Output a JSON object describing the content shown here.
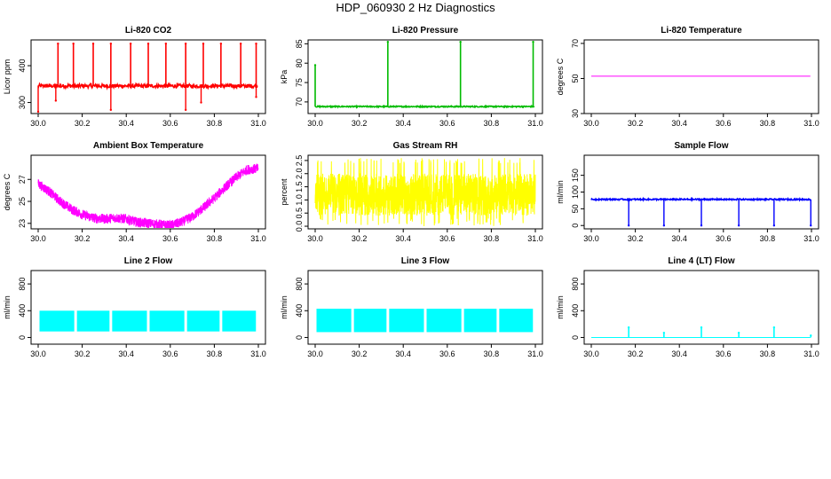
{
  "title": "HDP_060930  2 Hz Diagnostics",
  "chart_data": [
    {
      "type": "line",
      "title": "Li-820 CO2",
      "ylabel": "Licor ppm",
      "xlim": [
        30.0,
        31.0
      ],
      "ylim": [
        270,
        470
      ],
      "xticks": [
        "30.0",
        "30.2",
        "30.4",
        "30.6",
        "30.8",
        "31.0"
      ],
      "yticks": [
        300,
        400
      ],
      "color": "#ff0000",
      "series": [
        {
          "baseline": 345,
          "noise": 5,
          "spikes_up": [
            [
              30.09,
              460
            ],
            [
              30.16,
              460
            ],
            [
              30.25,
              460
            ],
            [
              30.33,
              460
            ],
            [
              30.42,
              460
            ],
            [
              30.5,
              460
            ],
            [
              30.58,
              460
            ],
            [
              30.67,
              460
            ],
            [
              30.75,
              460
            ],
            [
              30.83,
              460
            ],
            [
              30.92,
              460
            ],
            [
              30.99,
              460
            ]
          ],
          "spikes_down": [
            [
              30.0,
              275
            ],
            [
              30.08,
              305
            ],
            [
              30.33,
              280
            ],
            [
              30.67,
              280
            ],
            [
              30.74,
              300
            ],
            [
              30.99,
              315
            ]
          ]
        }
      ]
    },
    {
      "type": "line",
      "title": "Li-820 Pressure",
      "ylabel": "kPa",
      "xlim": [
        30.0,
        31.0
      ],
      "ylim": [
        67,
        86
      ],
      "xticks": [
        "30.0",
        "30.2",
        "30.4",
        "30.6",
        "30.8",
        "31.0"
      ],
      "yticks": [
        70,
        75,
        80,
        85
      ],
      "color": "#00bb00",
      "series": [
        {
          "baseline": 68.8,
          "noise": 0.15,
          "spikes_up": [
            [
              30.0,
              79.5
            ],
            [
              30.33,
              85.5
            ],
            [
              30.66,
              85.5
            ],
            [
              30.99,
              85.5
            ]
          ],
          "spikes_down": []
        }
      ]
    },
    {
      "type": "line",
      "title": "Li-820 Temperature",
      "ylabel": "degrees C",
      "xlim": [
        30.0,
        31.0
      ],
      "ylim": [
        30,
        72
      ],
      "xticks": [
        "30.0",
        "30.2",
        "30.4",
        "30.6",
        "30.8",
        "31.0"
      ],
      "yticks": [
        30,
        50,
        70
      ],
      "color": "#ff00ff",
      "series": [
        {
          "baseline": 51.3,
          "noise": 0,
          "spikes_up": [],
          "spikes_down": []
        }
      ]
    },
    {
      "type": "line",
      "title": "Ambient Box Temperature",
      "ylabel": "degrees C",
      "xlim": [
        30.0,
        31.0
      ],
      "ylim": [
        22.5,
        29.2
      ],
      "xticks": [
        "30.0",
        "30.2",
        "30.4",
        "30.6",
        "30.8",
        "31.0"
      ],
      "yticks": [
        23,
        25,
        27
      ],
      "color": "#ff00ff",
      "series": [
        {
          "noise": 0.45,
          "points": [
            [
              30.0,
              26.6
            ],
            [
              30.05,
              25.9
            ],
            [
              30.1,
              25.0
            ],
            [
              30.15,
              24.3
            ],
            [
              30.2,
              23.8
            ],
            [
              30.25,
              23.5
            ],
            [
              30.3,
              23.4
            ],
            [
              30.35,
              23.5
            ],
            [
              30.4,
              23.4
            ],
            [
              30.45,
              23.1
            ],
            [
              30.5,
              23.0
            ],
            [
              30.55,
              22.9
            ],
            [
              30.6,
              22.8
            ],
            [
              30.65,
              23.1
            ],
            [
              30.7,
              23.6
            ],
            [
              30.75,
              24.4
            ],
            [
              30.8,
              25.3
            ],
            [
              30.85,
              26.3
            ],
            [
              30.9,
              27.2
            ],
            [
              30.95,
              27.9
            ],
            [
              31.0,
              28.0
            ]
          ]
        }
      ]
    },
    {
      "type": "line",
      "title": "Gas Stream RH",
      "ylabel": "percent",
      "xlim": [
        30.0,
        31.0
      ],
      "ylim": [
        -0.1,
        2.7
      ],
      "xticks": [
        "30.0",
        "30.2",
        "30.4",
        "30.6",
        "30.8",
        "31.0"
      ],
      "yticks": [
        0.0,
        0.5,
        1.0,
        1.5,
        2.0,
        2.5
      ],
      "color": "#ffff00",
      "series": [
        {
          "baseline": 1.2,
          "noise": 0.8,
          "spread_min": 0.0,
          "spread_max": 2.6
        }
      ]
    },
    {
      "type": "line",
      "title": "Sample Flow",
      "ylabel": "ml/min",
      "xlim": [
        30.0,
        31.0
      ],
      "ylim": [
        -10,
        210
      ],
      "xticks": [
        "30.0",
        "30.2",
        "30.4",
        "30.6",
        "30.8",
        "31.0"
      ],
      "yticks": [
        0,
        50,
        100,
        150
      ],
      "color": "#0000ff",
      "series": [
        {
          "baseline": 78,
          "noise": 2,
          "spikes_up": [],
          "spikes_down": [
            [
              30.17,
              0
            ],
            [
              30.33,
              0
            ],
            [
              30.5,
              0
            ],
            [
              30.67,
              0
            ],
            [
              30.83,
              0
            ],
            [
              31.0,
              0
            ]
          ]
        }
      ]
    },
    {
      "type": "area",
      "title": "Line 2 Flow",
      "ylabel": "ml/min",
      "xlim": [
        30.0,
        31.0
      ],
      "ylim": [
        -100,
        1000
      ],
      "xticks": [
        "30.0",
        "30.2",
        "30.4",
        "30.6",
        "30.8",
        "31.0"
      ],
      "yticks": [
        0,
        400,
        800
      ],
      "color": "#00ffff",
      "series": [
        {
          "band_low": 90,
          "band_high": 400,
          "gaps": [
            30.17,
            30.33,
            30.5,
            30.67,
            30.83
          ]
        }
      ]
    },
    {
      "type": "area",
      "title": "Line 3 Flow",
      "ylabel": "ml/min",
      "xlim": [
        30.0,
        31.0
      ],
      "ylim": [
        -100,
        1000
      ],
      "xticks": [
        "30.0",
        "30.2",
        "30.4",
        "30.6",
        "30.8",
        "31.0"
      ],
      "yticks": [
        0,
        400,
        800
      ],
      "color": "#00ffff",
      "series": [
        {
          "band_low": 80,
          "band_high": 430,
          "gaps": [
            30.17,
            30.33,
            30.5,
            30.67,
            30.83
          ]
        }
      ]
    },
    {
      "type": "line",
      "title": "Line 4 (LT) Flow",
      "ylabel": "ml/min",
      "xlim": [
        30.0,
        31.0
      ],
      "ylim": [
        -100,
        1000
      ],
      "xticks": [
        "30.0",
        "30.2",
        "30.4",
        "30.6",
        "30.8",
        "31.0"
      ],
      "yticks": [
        0,
        400,
        800
      ],
      "color": "#00ffff",
      "series": [
        {
          "baseline": 0,
          "noise": 0,
          "spikes_up": [
            [
              30.17,
              150
            ],
            [
              30.33,
              70
            ],
            [
              30.5,
              150
            ],
            [
              30.67,
              70
            ],
            [
              30.83,
              150
            ],
            [
              31.0,
              30
            ]
          ],
          "spikes_down": []
        }
      ]
    }
  ]
}
